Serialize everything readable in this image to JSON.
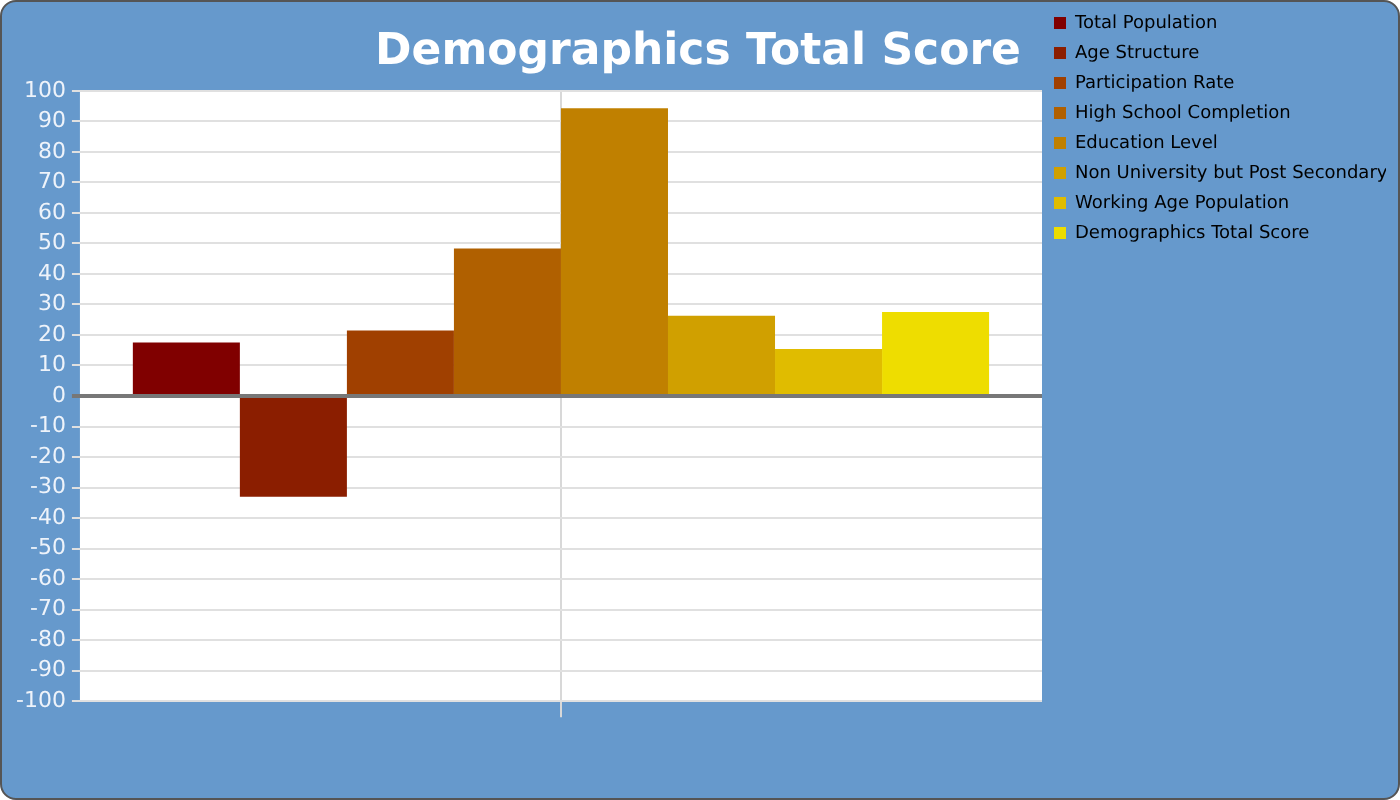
{
  "chart_data": {
    "type": "bar",
    "title": "Demographics Total Score",
    "categories": [
      null
    ],
    "series": [
      {
        "name": "Total Population",
        "color": "#800000",
        "values": [
          17.5
        ]
      },
      {
        "name": "Age Structure",
        "color": "#8b1e00",
        "values": [
          -33
        ]
      },
      {
        "name": "Participation Rate",
        "color": "#a04000",
        "values": [
          21.5
        ]
      },
      {
        "name": "High School Completion",
        "color": "#b06000",
        "values": [
          48.3
        ]
      },
      {
        "name": "Education Level",
        "color": "#c08000",
        "values": [
          94.3
        ]
      },
      {
        "name": "Non University but Post Secondary",
        "color": "#d0a000",
        "values": [
          26.3
        ]
      },
      {
        "name": "Working Age Population",
        "color": "#e0bc00",
        "values": [
          15.4
        ]
      },
      {
        "name": "Demographics Total Score",
        "color": "#eedd00",
        "values": [
          27.5
        ]
      }
    ],
    "ylim": [
      -100,
      100
    ],
    "yticks": [
      -100,
      -90,
      -80,
      -70,
      -60,
      -50,
      -40,
      -30,
      -20,
      -10,
      0,
      10,
      20,
      30,
      40,
      50,
      60,
      70,
      80,
      90,
      100
    ],
    "grid": true,
    "legend": "right"
  }
}
